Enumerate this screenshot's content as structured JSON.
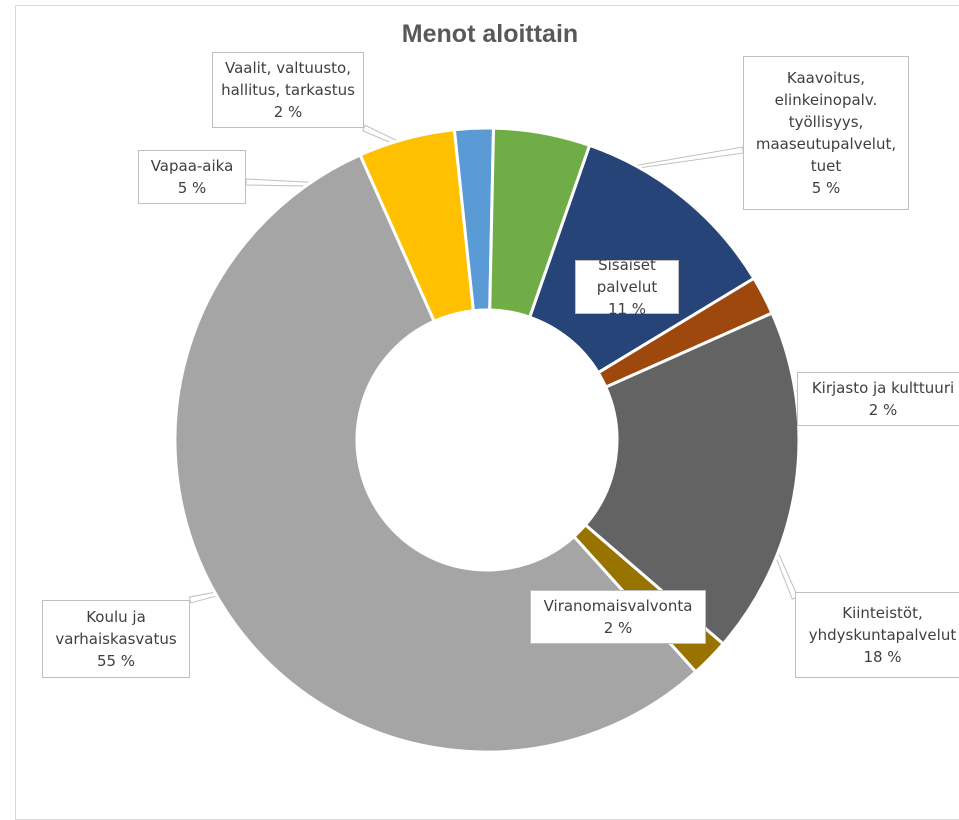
{
  "chart_data": {
    "type": "pie",
    "variant": "donut",
    "title": "Menot aloittain",
    "legend": "none",
    "slices": [
      {
        "name": "Vapaa-aika",
        "label_lines": [
          "Vapaa-aika"
        ],
        "value": 5,
        "value_label": "5 %",
        "color": "#FFC000"
      },
      {
        "name": "Vaalit, valtuusto, hallitus, tarkastus",
        "label_lines": [
          "Vaalit, valtuusto,",
          "hallitus, tarkastus"
        ],
        "value": 2,
        "value_label": "2 %",
        "color": "#5B9BD5"
      },
      {
        "name": "Kaavoitus, elinkeinopalv. työllisyys, maaseutupalvelut, tuet",
        "label_lines": [
          "Kaavoitus,",
          "elinkeinopalv.",
          "työllisyys,",
          "maaseutupalvelut,",
          "tuet"
        ],
        "value": 5,
        "value_label": "5 %",
        "color": "#70AD47"
      },
      {
        "name": "Sisäiset palvelut",
        "label_lines": [
          "Sisäiset palvelut"
        ],
        "value": 11,
        "value_label": "11 %",
        "color": "#264478"
      },
      {
        "name": "Kirjasto ja kulttuuri",
        "label_lines": [
          "Kirjasto ja kulttuuri"
        ],
        "value": 2,
        "value_label": "2 %",
        "color": "#9E480E"
      },
      {
        "name": "Kiinteistöt, yhdyskuntapalvelut",
        "label_lines": [
          "Kiinteistöt,",
          "yhdyskuntapalvelut"
        ],
        "value": 18,
        "value_label": "18 %",
        "color": "#636363"
      },
      {
        "name": "Viranomaisvalvonta",
        "label_lines": [
          "Viranomaisvalvonta"
        ],
        "value": 2,
        "value_label": "2 %",
        "color": "#997300"
      },
      {
        "name": "Koulu ja varhaiskasvatus",
        "label_lines": [
          "Koulu ja",
          "varhaiskasvatus"
        ],
        "value": 55,
        "value_label": "55 %",
        "color": "#A5A5A5"
      }
    ]
  }
}
